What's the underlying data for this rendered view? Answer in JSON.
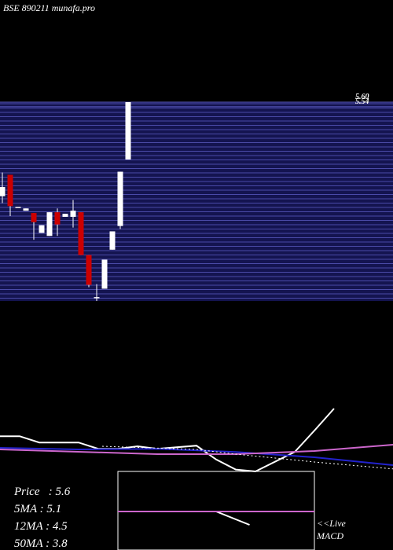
{
  "title": "BSE 890211 munafa.pro",
  "chart_data": [
    {
      "type": "candlestick",
      "ylim": [
        3.0,
        5.6
      ],
      "yticks": [
        {
          "value": 5.6,
          "label": "5.60"
        },
        {
          "value": 5.54,
          "label": "5.54"
        }
      ],
      "grid": true,
      "up_color": "#ffffff",
      "down_color": "#cc0000",
      "candles": [
        {
          "open": 4.37,
          "high": 4.68,
          "low": 4.28,
          "close": 4.49
        },
        {
          "open": 4.65,
          "high": 4.65,
          "low": 4.11,
          "close": 4.24
        },
        {
          "open": 4.23,
          "high": 4.23,
          "low": 4.23,
          "close": 4.23
        },
        {
          "open": 4.18,
          "high": 4.21,
          "low": 4.18,
          "close": 4.21
        },
        {
          "open": 4.15,
          "high": 4.15,
          "low": 3.8,
          "close": 4.03
        },
        {
          "open": 3.89,
          "high": 3.99,
          "low": 3.89,
          "close": 3.99
        },
        {
          "open": 3.85,
          "high": 4.16,
          "low": 3.85,
          "close": 4.16
        },
        {
          "open": 4.16,
          "high": 4.21,
          "low": 3.85,
          "close": 4.0
        },
        {
          "open": 4.1,
          "high": 4.14,
          "low": 4.1,
          "close": 4.14
        },
        {
          "open": 4.1,
          "high": 4.32,
          "low": 3.96,
          "close": 4.18
        },
        {
          "open": 4.16,
          "high": 4.16,
          "low": 3.6,
          "close": 3.6
        },
        {
          "open": 3.6,
          "high": 3.6,
          "low": 3.18,
          "close": 3.21
        },
        {
          "open": 3.05,
          "high": 3.22,
          "low": 3.0,
          "close": 3.05
        },
        {
          "open": 3.16,
          "high": 3.54,
          "low": 3.16,
          "close": 3.54
        },
        {
          "open": 3.67,
          "high": 3.91,
          "low": 3.67,
          "close": 3.91
        },
        {
          "open": 3.98,
          "high": 4.69,
          "low": 3.94,
          "close": 4.69
        },
        {
          "open": 4.85,
          "high": 5.6,
          "low": 4.85,
          "close": 5.6
        }
      ]
    },
    {
      "type": "line",
      "xlim": [
        0,
        20
      ],
      "ylim": [
        0,
        10
      ],
      "series": [
        {
          "color": "#ffffff",
          "x": [
            0,
            1,
            2,
            4,
            5,
            6,
            7,
            8,
            10,
            11,
            12,
            13,
            15,
            16,
            17
          ],
          "values": [
            5.6,
            5.6,
            4.6,
            4.6,
            3.6,
            3.6,
            4.0,
            3.6,
            4.1,
            1.9,
            0.3,
            0,
            3.1,
            6.5,
            10
          ]
        },
        {
          "color": "#2222cc",
          "x": [
            0,
            4,
            8,
            12,
            16,
            20
          ],
          "values": [
            3.75,
            3.5,
            3.6,
            3.1,
            2.25,
            1.0
          ]
        },
        {
          "color": "#cc66cc",
          "x": [
            0,
            8,
            12,
            16,
            20
          ],
          "values": [
            3.5,
            2.75,
            2.75,
            3.25,
            4.25
          ]
        },
        {
          "color": "#ffffff",
          "dashed": true,
          "x": [
            5.2,
            10,
            12,
            16,
            20
          ],
          "values": [
            4,
            3.5,
            2.75,
            1.5,
            0.4
          ]
        }
      ]
    },
    {
      "type": "line",
      "xlim": [
        0,
        10
      ],
      "ylim": [
        0,
        10
      ],
      "label": "<<Live MACD",
      "series": [
        {
          "color": "#ffffff",
          "x": [
            0,
            5,
            6.7
          ],
          "values": [
            4.9,
            4.9,
            3.2
          ]
        },
        {
          "color": "#cc66cc",
          "x": [
            0,
            10
          ],
          "values": [
            4.9,
            4.9
          ]
        }
      ]
    }
  ],
  "stats": [
    "Price   : 5.6",
    "5MA : 5.1",
    "12MA : 4.5",
    "50MA : 3.8"
  ]
}
